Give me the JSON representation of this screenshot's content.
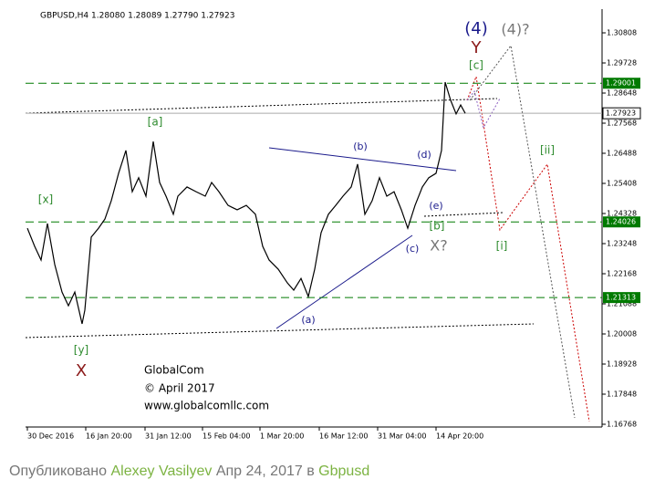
{
  "chart_data": {
    "type": "line",
    "title": "GBPUSD,H4 1.28080 1.28089 1.27790 1.27923",
    "x": [
      0,
      8,
      15,
      22,
      30,
      38,
      45,
      52,
      60,
      63,
      70,
      78,
      85,
      92,
      100,
      108,
      115,
      122,
      130,
      138,
      145,
      152,
      160,
      165,
      175,
      185,
      195,
      202,
      210,
      220,
      230,
      240,
      250,
      258,
      265,
      275,
      285,
      292,
      300,
      308,
      315,
      322,
      330,
      338,
      346,
      355,
      362,
      370,
      378,
      386,
      394,
      402,
      410,
      417,
      425,
      433,
      440,
      448,
      454,
      458,
      464,
      470,
      475,
      480
    ],
    "series": [
      {
        "name": "GBPUSD",
        "color": "#000000",
        "values": [
          1.238,
          1.2315,
          1.2266,
          1.2397,
          1.225,
          1.2151,
          1.2102,
          1.2151,
          1.2037,
          1.2086,
          1.2348,
          1.238,
          1.2413,
          1.2479,
          1.2577,
          1.2659,
          1.2511,
          1.2561,
          1.2495,
          1.2691,
          1.2544,
          1.2495,
          1.243,
          1.2495,
          1.2528,
          1.2511,
          1.2495,
          1.2544,
          1.2511,
          1.2462,
          1.2446,
          1.2462,
          1.243,
          1.2315,
          1.2266,
          1.2233,
          1.2184,
          1.2158,
          1.22,
          1.2135,
          1.2233,
          1.2364,
          1.243,
          1.2462,
          1.2495,
          1.2528,
          1.261,
          1.243,
          1.2479,
          1.2561,
          1.2495,
          1.2511,
          1.2446,
          1.238,
          1.2462,
          1.2528,
          1.2561,
          1.2577,
          1.2659,
          1.2904,
          1.2839,
          1.279,
          1.2822,
          1.27923
        ]
      }
    ],
    "xlim": [
      -2,
      630
    ],
    "ylim": [
      1.1667,
      1.31659
    ],
    "xticks": [
      {
        "value": 0,
        "label": "30 Dec 2016"
      },
      {
        "value": 64,
        "label": "16 Jan 20:00"
      },
      {
        "value": 129,
        "label": "31 Jan 12:00"
      },
      {
        "value": 192,
        "label": "15 Feb 04:00"
      },
      {
        "value": 255,
        "label": "1 Mar 20:00"
      },
      {
        "value": 320,
        "label": "16 Mar 12:00"
      },
      {
        "value": 384,
        "label": "31 Mar 04:00"
      },
      {
        "value": 448,
        "label": "14 Apr 20:00"
      }
    ],
    "yticks": [
      1.30808,
      1.29728,
      1.28648,
      1.27568,
      1.26488,
      1.25408,
      1.24328,
      1.23248,
      1.22168,
      1.21088,
      1.20008,
      1.18928,
      1.17848,
      1.16768
    ],
    "levels": [
      1.29001,
      1.24026,
      1.21313
    ],
    "level_color": "#007a00",
    "current_price": 1.27923,
    "annotations": [
      {
        "text": "[x]",
        "color": "#2e8b2e"
      },
      {
        "text": "[y]",
        "color": "#2e8b2e"
      },
      {
        "text": "X",
        "color": "#8b1a1a"
      },
      {
        "text": "[a]",
        "color": "#2e8b2e"
      },
      {
        "text": "(a)",
        "color": "#1a1a8b"
      },
      {
        "text": "(b)",
        "color": "#1a1a8b"
      },
      {
        "text": "(c)",
        "color": "#1a1a8b"
      },
      {
        "text": "(d)",
        "color": "#1a1a8b"
      },
      {
        "text": "(e)",
        "color": "#1a1a8b"
      },
      {
        "text": "[b]",
        "color": "#2e8b2e"
      },
      {
        "text": "X?",
        "color": "#777777"
      },
      {
        "text": "[c]",
        "color": "#2e8b2e"
      },
      {
        "text": "(4)",
        "color": "#1a1a8b"
      },
      {
        "text": "Y",
        "color": "#8b1a1a"
      },
      {
        "text": "(4)?",
        "color": "#777777"
      },
      {
        "text": "[i]",
        "color": "#2e8b2e"
      },
      {
        "text": "[ii]",
        "color": "#2e8b2e"
      }
    ],
    "watermark": [
      "GlobalCom",
      "© April 2017",
      "www.globalcomllc.com"
    ]
  },
  "caption": {
    "prefix": "Опубликовано",
    "author": "Alexey Vasilyev",
    "date": "Апр 24, 2017 в",
    "instrument": "Gbpusd"
  }
}
